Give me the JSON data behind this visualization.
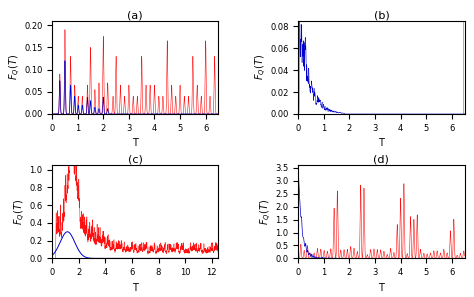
{
  "panels": [
    "(a)",
    "(b)",
    "(c)",
    "(d)"
  ],
  "red_color": "#FF1010",
  "blue_color": "#0000CC",
  "xlabel": "T",
  "panel_a": {
    "xlim": [
      0,
      6.5
    ],
    "ylim": [
      0,
      0.21
    ],
    "yticks": [
      0,
      0.05,
      0.1,
      0.15,
      0.2
    ],
    "xticks": [
      0,
      1,
      2,
      3,
      4,
      5,
      6
    ]
  },
  "panel_b": {
    "xlim": [
      0,
      6.5
    ],
    "ylim": [
      0,
      0.085
    ],
    "yticks": [
      0,
      0.02,
      0.04,
      0.06,
      0.08
    ],
    "xticks": [
      0,
      1,
      2,
      3,
      4,
      5,
      6
    ]
  },
  "panel_c": {
    "xlim": [
      0,
      12.5
    ],
    "ylim": [
      0,
      1.05
    ],
    "yticks": [
      0,
      0.2,
      0.4,
      0.6,
      0.8,
      1.0
    ],
    "xticks": [
      0,
      2,
      4,
      6,
      8,
      10,
      12
    ]
  },
  "panel_d": {
    "xlim": [
      0,
      6.5
    ],
    "ylim": [
      0,
      3.6
    ],
    "yticks": [
      0,
      0.5,
      1.0,
      1.5,
      2.0,
      2.5,
      3.0,
      3.5
    ],
    "xticks": [
      0,
      1,
      2,
      3,
      4,
      5,
      6
    ]
  }
}
